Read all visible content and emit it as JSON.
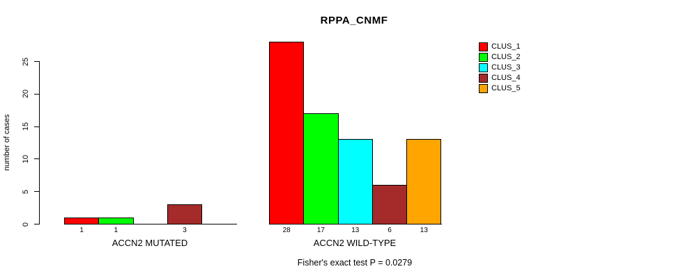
{
  "title": "RPPA_CNMF",
  "footer": "Fisher's exact test P = 0.0279",
  "chart_data": {
    "type": "bar",
    "title": "RPPA_CNMF",
    "xlabel": "",
    "ylabel": "number of cases",
    "ylim": [
      0,
      25
    ],
    "yticks": [
      0,
      5,
      10,
      15,
      20,
      25
    ],
    "grid": false,
    "legend_position": "top-right",
    "series_labels": [
      "CLUS_1",
      "CLUS_2",
      "CLUS_3",
      "CLUS_4",
      "CLUS_5"
    ],
    "colors": [
      "#FF0000",
      "#00FF00",
      "#00FFFF",
      "#A52A2A",
      "#FFA500"
    ],
    "groups": [
      {
        "label": "ACCN2 MUTATED",
        "values": [
          1,
          1,
          0,
          3,
          0
        ]
      },
      {
        "label": "ACCN2 WILD-TYPE",
        "values": [
          28,
          17,
          13,
          6,
          13
        ]
      }
    ],
    "bar_value_labels_shown_only_when_nonzero": true,
    "annotation": "Fisher's exact test P = 0.0279"
  }
}
